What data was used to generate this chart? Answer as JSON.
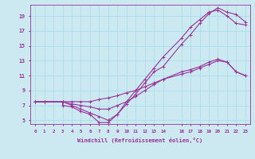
{
  "xlabel": "Windchill (Refroidissement éolien,°C)",
  "bg_color": "#cce8f0",
  "line_color": "#993399",
  "grid_color": "#aaddee",
  "xlim": [
    -0.5,
    23.5
  ],
  "ylim": [
    4.5,
    20.5
  ],
  "yticks": [
    5,
    7,
    9,
    11,
    13,
    15,
    17,
    19
  ],
  "xticks": [
    0,
    1,
    2,
    3,
    4,
    5,
    6,
    7,
    8,
    9,
    10,
    11,
    12,
    13,
    14,
    16,
    17,
    18,
    19,
    20,
    21,
    22,
    23
  ],
  "line1_x": [
    0,
    1,
    3,
    3,
    4,
    5,
    6,
    7,
    8,
    9,
    10,
    11,
    12,
    13,
    14,
    16,
    17,
    18,
    19,
    20,
    21,
    22,
    23
  ],
  "line1_y": [
    7.5,
    7.5,
    7.5,
    7.0,
    6.8,
    6.2,
    5.8,
    4.7,
    4.7,
    5.8,
    7.2,
    8.5,
    10.0,
    11.5,
    12.2,
    15.2,
    16.5,
    18.0,
    19.3,
    20.1,
    19.5,
    19.2,
    18.2
  ],
  "line2_x": [
    0,
    1,
    3,
    4,
    5,
    6,
    7,
    8,
    9,
    10,
    11,
    12,
    13,
    14,
    16,
    17,
    18,
    19,
    20,
    21,
    22,
    23
  ],
  "line2_y": [
    7.5,
    7.5,
    7.5,
    7.0,
    6.5,
    6.0,
    5.5,
    5.0,
    5.8,
    7.5,
    9.0,
    10.5,
    12.0,
    13.5,
    16.0,
    17.5,
    18.5,
    19.5,
    19.8,
    19.0,
    18.0,
    17.8
  ],
  "line3_x": [
    0,
    1,
    3,
    4,
    5,
    6,
    7,
    8,
    9,
    10,
    11,
    12,
    13,
    14,
    16,
    17,
    18,
    19,
    20,
    21,
    22,
    23
  ],
  "line3_y": [
    7.5,
    7.5,
    7.5,
    7.2,
    7.0,
    6.8,
    6.5,
    6.5,
    7.0,
    7.5,
    8.2,
    9.0,
    9.8,
    10.5,
    11.5,
    11.8,
    12.2,
    12.8,
    13.2,
    12.8,
    11.5,
    11.0
  ],
  "line4_x": [
    0,
    1,
    3,
    4,
    5,
    6,
    7,
    8,
    9,
    10,
    11,
    12,
    13,
    14,
    16,
    17,
    18,
    19,
    20,
    21,
    22,
    23
  ],
  "line4_y": [
    7.5,
    7.5,
    7.5,
    7.5,
    7.5,
    7.5,
    7.8,
    8.0,
    8.3,
    8.7,
    9.0,
    9.5,
    10.0,
    10.5,
    11.2,
    11.5,
    12.0,
    12.5,
    13.0,
    12.8,
    11.5,
    11.0
  ]
}
